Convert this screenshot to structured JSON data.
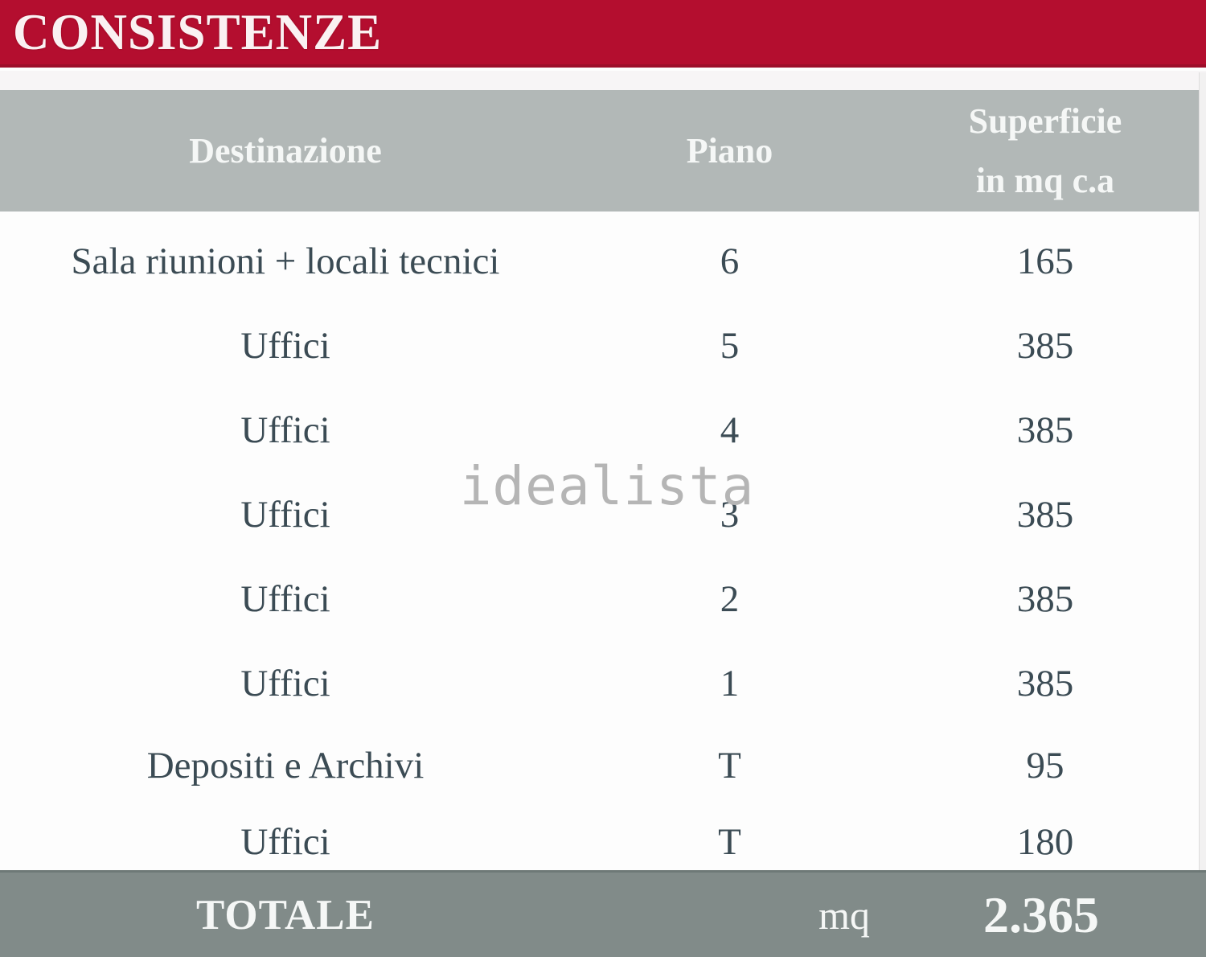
{
  "banner": {
    "title": "CONSISTENZE"
  },
  "watermark": {
    "text": "idealista"
  },
  "table": {
    "columns": [
      {
        "label": "Destinazione"
      },
      {
        "label": "Piano"
      },
      {
        "label": "Superficie in mq c.a",
        "line1": "Superficie",
        "line2": "in mq c.a"
      }
    ],
    "rows": [
      {
        "destinazione": "Sala riunioni + locali tecnici",
        "piano": "6",
        "superficie": "165"
      },
      {
        "destinazione": "Uffici",
        "piano": "5",
        "superficie": "385"
      },
      {
        "destinazione": "Uffici",
        "piano": "4",
        "superficie": "385"
      },
      {
        "destinazione": "Uffici",
        "piano": "3",
        "superficie": "385"
      },
      {
        "destinazione": "Uffici",
        "piano": "2",
        "superficie": "385"
      },
      {
        "destinazione": "Uffici",
        "piano": "1",
        "superficie": "385"
      },
      {
        "destinazione": "Depositi e Archivi",
        "piano": "T",
        "superficie": "95"
      },
      {
        "destinazione": "Uffici",
        "piano": "T",
        "superficie": "180"
      }
    ],
    "footer": {
      "label": "TOTALE",
      "unit": "mq",
      "total": "2.365"
    }
  },
  "colors": {
    "banner_red": "#b40e2f",
    "banner_red_border": "#9d0e2a",
    "header_gray": "#b2b8b7",
    "footer_gray": "#818b89",
    "body_text": "#3b4b54",
    "header_text": "#f5f7f6",
    "watermark_gray": "#b5b5b5"
  }
}
